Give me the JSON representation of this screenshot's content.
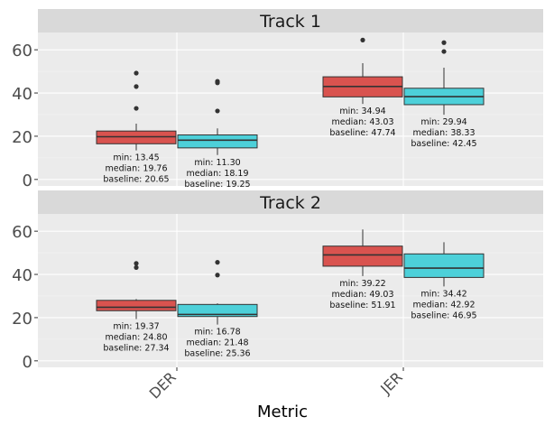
{
  "chart_data": {
    "type": "box",
    "xlabel": "Metric",
    "ylabel": "",
    "categories": [
      "DER",
      "JER"
    ],
    "ylim": [
      -3,
      68
    ],
    "yticks": [
      0,
      20,
      40,
      60
    ],
    "series_colors": [
      "#d9534f",
      "#4dd0d9"
    ],
    "panels": [
      {
        "title": "Track 1",
        "boxes": [
          {
            "category": "DER",
            "series": 0,
            "whisker_low": 13.45,
            "q1": 16.5,
            "median": 19.76,
            "q3": 22.4,
            "whisker_high": 25.8,
            "outliers": [
              32.9,
              43.0,
              49.2
            ],
            "annotation": [
              "min: 13.45",
              "median: 19.76",
              "baseline: 20.65"
            ]
          },
          {
            "category": "DER",
            "series": 1,
            "whisker_low": 11.3,
            "q1": 14.6,
            "median": 18.19,
            "q3": 20.6,
            "whisker_high": 23.6,
            "outliers": [
              31.7,
              44.7,
              45.4
            ],
            "annotation": [
              "min: 11.30",
              "median: 18.19",
              "baseline: 19.25"
            ]
          },
          {
            "category": "JER",
            "series": 0,
            "whisker_low": 34.94,
            "q1": 38.2,
            "median": 43.03,
            "q3": 47.5,
            "whisker_high": 53.8,
            "outliers": [
              64.5
            ],
            "annotation": [
              "min: 34.94",
              "median: 43.03",
              "baseline: 47.74"
            ]
          },
          {
            "category": "JER",
            "series": 1,
            "whisker_low": 29.94,
            "q1": 34.6,
            "median": 38.33,
            "q3": 42.2,
            "whisker_high": 51.7,
            "outliers": [
              59.2,
              63.3
            ],
            "annotation": [
              "min: 29.94",
              "median: 38.33",
              "baseline: 42.45"
            ]
          }
        ]
      },
      {
        "title": "Track 2",
        "boxes": [
          {
            "category": "DER",
            "series": 0,
            "whisker_low": 19.37,
            "q1": 23.2,
            "median": 24.8,
            "q3": 28.0,
            "whisker_high": 28.6,
            "outliers": [
              43.2,
              45.1
            ],
            "annotation": [
              "min: 19.37",
              "median: 24.80",
              "baseline: 27.34"
            ]
          },
          {
            "category": "DER",
            "series": 1,
            "whisker_low": 16.78,
            "q1": 20.5,
            "median": 21.48,
            "q3": 26.1,
            "whisker_high": 26.6,
            "outliers": [
              39.7,
              45.6
            ],
            "annotation": [
              "min: 16.78",
              "median: 21.48",
              "baseline: 25.36"
            ]
          },
          {
            "category": "JER",
            "series": 0,
            "whisker_low": 39.22,
            "q1": 43.8,
            "median": 49.03,
            "q3": 53.1,
            "whisker_high": 60.8,
            "outliers": [],
            "annotation": [
              "min: 39.22",
              "median: 49.03",
              "baseline: 51.91"
            ]
          },
          {
            "category": "JER",
            "series": 1,
            "whisker_low": 34.42,
            "q1": 38.6,
            "median": 42.92,
            "q3": 49.5,
            "whisker_high": 54.9,
            "outliers": [],
            "annotation": [
              "min: 34.42",
              "median: 42.92",
              "baseline: 46.95"
            ]
          }
        ]
      }
    ]
  }
}
